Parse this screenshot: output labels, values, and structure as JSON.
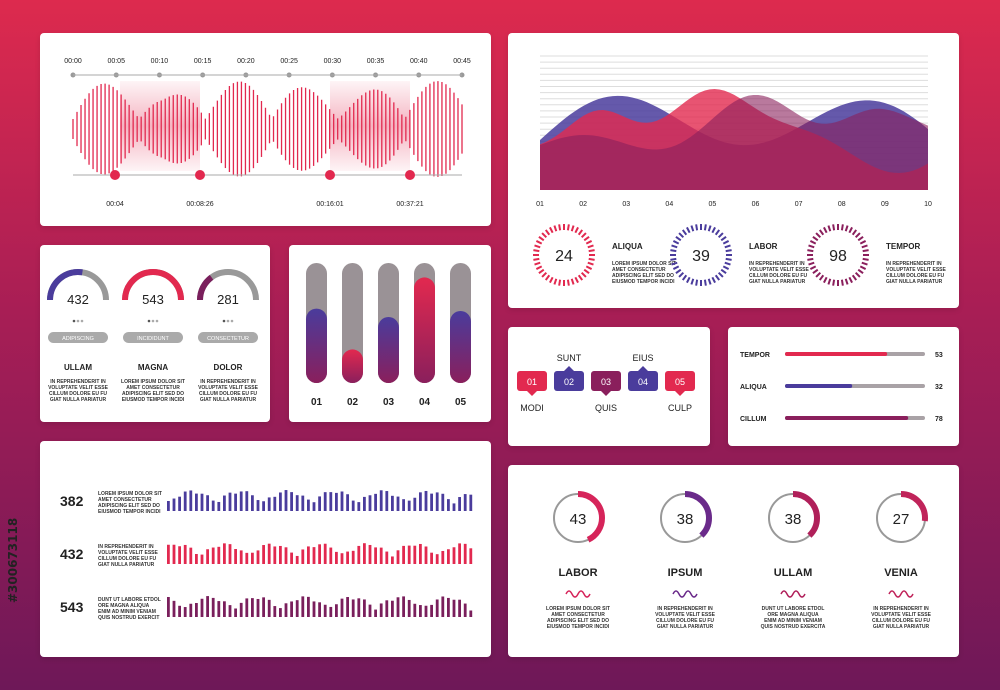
{
  "side_id": "#300673118",
  "audio": {
    "time_marks": [
      "00:00",
      "00:05",
      "00:10",
      "00:15",
      "00:20",
      "00:25",
      "00:30",
      "00:35",
      "00:40",
      "00:45"
    ],
    "markers": [
      "00:04",
      "00:08:26",
      "00:16:01",
      "00:37:21"
    ],
    "colors": {
      "accent": "#e2294f"
    }
  },
  "area_chart": {
    "x_ticks": [
      "01",
      "02",
      "03",
      "04",
      "05",
      "06",
      "07",
      "08",
      "09",
      "10"
    ]
  },
  "dial_stats": [
    {
      "value": "24",
      "title": "ALIQUA",
      "text": [
        "LOREM IPSUM DOLOR SIT",
        "AMET CONSECTETUR",
        "ADIPISCING ELIT SED DO",
        "EIUSMOD TEMPOR INCIDI"
      ],
      "color": "#e2294f"
    },
    {
      "value": "39",
      "title": "LABOR",
      "text": [
        "IN REPREHENDERIT IN",
        "VOLUPTATE VELIT ESSE",
        "CILLUM DOLORE EU FU",
        "GIAT NULLA PARIATUR"
      ],
      "color": "#4a3c9c"
    },
    {
      "value": "98",
      "title": "TEMPOR",
      "text": [
        "IN REPREHENDERIT IN",
        "VOLUPTATE VELIT ESSE",
        "CILLUM DOLORE EU FU",
        "GIAT NULLA PARIATUR"
      ],
      "color": "#8a1f5c"
    }
  ],
  "gauges": [
    {
      "value": "432",
      "pill": "ADIPISCING",
      "title": "ULLAM",
      "text": [
        "IN REPREHENDERIT IN",
        "VOLUPTATE VELIT ESSE",
        "CILLUM DOLORE EU FU",
        "GIAT NULLA PARIATUR"
      ],
      "color": "#4a3c9c",
      "fraction": 0.55
    },
    {
      "value": "543",
      "pill": "INCIDIDUNT",
      "title": "MAGNA",
      "text": [
        "LOREM IPSUM DOLOR SIT",
        "AMET CONSECTETUR",
        "ADIPISCING ELIT SED DO",
        "EIUSMOD TEMPOR INCIDI"
      ],
      "color": "#e2294f",
      "fraction": 1.0
    },
    {
      "value": "281",
      "pill": "CONSECTETUR",
      "title": "DOLOR",
      "text": [
        "IN REPREHENDERIT IN",
        "VOLUPTATE VELIT ESSE",
        "CILLUM DOLORE EU FU",
        "GIAT NULLA PARIATUR"
      ],
      "color": "#7a1f5c",
      "fraction": 0.3
    }
  ],
  "vbars": [
    {
      "label": "01",
      "fraction": 0.62
    },
    {
      "label": "02",
      "fraction": 0.28
    },
    {
      "label": "03",
      "fraction": 0.55
    },
    {
      "label": "04",
      "fraction": 0.88
    },
    {
      "label": "05",
      "fraction": 0.6
    }
  ],
  "steps": {
    "top": [
      "SUNT",
      "EIUS"
    ],
    "bottom": [
      "MODI",
      "QUIS",
      "CULP"
    ],
    "items": [
      {
        "num": "01",
        "color": "#e2294f"
      },
      {
        "num": "02",
        "color": "#4a3c9c"
      },
      {
        "num": "03",
        "color": "#8a1f5c"
      },
      {
        "num": "04",
        "color": "#4a3c9c"
      },
      {
        "num": "05",
        "color": "#e2294f"
      }
    ]
  },
  "hbars": [
    {
      "label": "TEMPOR",
      "value": "53",
      "fraction": 0.73,
      "color": "#e2294f"
    },
    {
      "label": "ALIQUA",
      "value": "32",
      "fraction": 0.48,
      "color": "#4a3c9c"
    },
    {
      "label": "CILLUM",
      "value": "78",
      "fraction": 0.88,
      "color": "#8a1f5c"
    }
  ],
  "wave_rows": [
    {
      "value": "382",
      "text": [
        "LOREM IPSUM DOLOR SIT",
        "AMET CONSECTETUR",
        "ADIPISCING ELIT SED DO",
        "EIUSMOD TEMPOR INCIDI"
      ],
      "color": "#4a3c9c"
    },
    {
      "value": "432",
      "text": [
        "IN REPREHENDERIT IN",
        "VOLUPTATE VELIT ESSE",
        "CILLUM DOLORE EU FU",
        "GIAT NULLA PARIATUR"
      ],
      "color": "#e2294f"
    },
    {
      "value": "543",
      "text": [
        "DUNT UT LABORE ETDOL",
        "ORE MAGNA ALIQUA",
        "ENIM AD MINIM VENIAM",
        "QUIS NOSTRUD EXERCIT"
      ],
      "color": "#7a1f5c"
    }
  ],
  "donuts": [
    {
      "value": "43",
      "title": "LABOR",
      "text": [
        "LOREM IPSUM DOLOR SIT",
        "AMET CONSECTETUR",
        "ADIPISCING ELIT SED DO",
        "EIUSMOD TEMPOR INCIDI"
      ],
      "fraction": 0.43,
      "color": "#d6245a"
    },
    {
      "value": "38",
      "title": "IPSUM",
      "text": [
        "IN REPREHENDERIT IN",
        "VOLUPTATE VELIT ESSE",
        "CILLUM DOLORE EU FU",
        "GIAT NULLA PARIATUR"
      ],
      "fraction": 0.38,
      "color": "#6a2a8a"
    },
    {
      "value": "38",
      "title": "ULLAM",
      "text": [
        "DUNT UT LABORE ETDOL",
        "ORE MAGNA ALIQUA",
        "ENIM AD MINIM VENIAM",
        "QUIS NOSTRUD EXERCITA"
      ],
      "fraction": 0.38,
      "color": "#b0205a"
    },
    {
      "value": "27",
      "title": "VENIA",
      "text": [
        "IN REPREHENDERIT IN",
        "VOLUPTATE VELIT ESSE",
        "CILLUM DOLORE EU FU",
        "GIAT NULLA PARIATUR"
      ],
      "fraction": 0.27,
      "color": "#c0245a"
    }
  ]
}
